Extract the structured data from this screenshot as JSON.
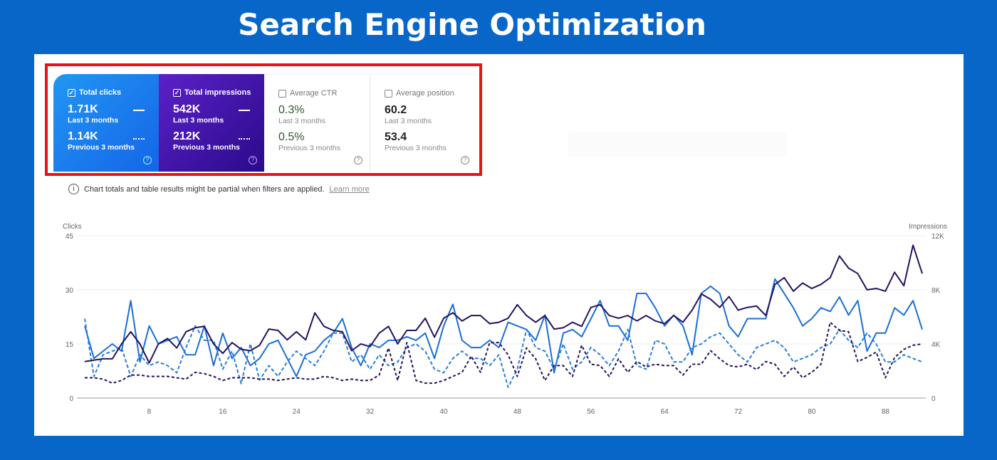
{
  "title": "Search Engine Optimization",
  "cards": [
    {
      "label": "Total clicks",
      "checked": true,
      "current": "1.71K",
      "current_label": "Last 3 months",
      "previous": "1.14K",
      "previous_label": "Previous 3 months"
    },
    {
      "label": "Total impressions",
      "checked": true,
      "current": "542K",
      "current_label": "Last 3 months",
      "previous": "212K",
      "previous_label": "Previous 3 months"
    },
    {
      "label": "Average CTR",
      "checked": false,
      "current": "0.3%",
      "current_label": "Last 3 months",
      "previous": "0.5%",
      "previous_label": "Previous 3 months"
    },
    {
      "label": "Average position",
      "checked": false,
      "current": "60.2",
      "current_label": "Last 3 months",
      "previous": "53.4",
      "previous_label": "Previous 3 months"
    }
  ],
  "info": {
    "text": "Chart totals and table results might be partial when filters are applied.",
    "link": "Learn more"
  },
  "colors": {
    "clicks": "#1a6fd6",
    "impressions": "#24135f",
    "background": "#0866c9",
    "highlight": "#e8121a"
  },
  "chart_data": {
    "type": "line",
    "x_ticks": [
      8,
      16,
      24,
      32,
      40,
      48,
      56,
      64,
      72,
      80,
      88
    ],
    "left_axis": {
      "label": "Clicks",
      "ticks": [
        "0",
        "15",
        "30",
        "45"
      ],
      "range": [
        0,
        45
      ]
    },
    "right_axis": {
      "label": "Impressions",
      "ticks": [
        "0",
        "4K",
        "8K",
        "12K"
      ],
      "range": [
        0,
        12
      ]
    },
    "series": [
      {
        "name": "Clicks (Last 3 months)",
        "axis": "left",
        "style": "solid",
        "values": [
          20,
          11,
          13,
          15,
          13,
          27,
          10,
          20,
          15,
          16,
          17,
          12,
          12,
          20,
          9,
          18,
          11,
          14,
          9,
          11,
          15,
          16,
          11,
          6,
          12,
          13,
          16,
          18,
          22,
          14,
          9,
          15,
          14,
          16,
          16,
          17,
          16,
          18,
          11,
          20,
          26,
          16,
          14,
          14,
          16,
          14,
          21,
          20,
          19,
          16,
          23,
          7,
          18,
          19,
          17,
          22,
          27,
          20,
          20,
          16,
          29,
          29,
          25,
          20,
          23,
          20,
          12,
          29,
          31,
          29,
          20,
          17,
          22,
          22,
          22,
          33,
          29,
          25,
          20,
          22,
          25,
          24,
          28,
          23,
          27,
          13,
          18,
          18,
          25,
          23,
          27,
          19
        ]
      },
      {
        "name": "Clicks (Previous 3 months)",
        "axis": "left",
        "style": "dashed",
        "values": [
          22,
          6,
          12,
          13,
          14,
          6,
          12,
          9,
          10,
          9,
          7,
          14,
          20,
          16,
          16,
          8,
          13,
          4,
          15,
          5,
          9,
          6,
          10,
          13,
          11,
          9,
          13,
          18,
          18,
          10,
          12,
          8,
          12,
          9,
          10,
          14,
          15,
          13,
          8,
          7,
          11,
          13,
          11,
          11,
          9,
          12,
          3,
          8,
          19,
          14,
          13,
          8,
          15,
          8,
          10,
          14,
          12,
          9,
          13,
          19,
          9,
          8,
          16,
          15,
          10,
          10,
          14,
          15,
          17,
          18,
          15,
          12,
          10,
          14,
          15,
          16,
          14,
          10,
          11,
          12,
          14,
          15,
          19,
          16,
          14,
          18,
          15,
          10,
          10,
          12,
          11,
          10
        ]
      },
      {
        "name": "Impressions (Last 3 months)",
        "axis": "right",
        "style": "solid",
        "values": [
          2.7,
          2.8,
          2.9,
          2.9,
          4.0,
          4.9,
          4.0,
          2.6,
          4.0,
          4.4,
          3.7,
          4.9,
          5.2,
          5.3,
          4.0,
          3.3,
          4.1,
          3.6,
          3.5,
          3.9,
          5.1,
          5.0,
          4.3,
          4.9,
          4.3,
          6.3,
          5.3,
          5.0,
          4.9,
          3.5,
          4.0,
          3.8,
          4.8,
          5.3,
          4.0,
          5.0,
          5.0,
          5.9,
          4.5,
          5.9,
          6.3,
          5.7,
          6.1,
          6.1,
          5.5,
          5.6,
          5.9,
          6.9,
          6.1,
          5.6,
          6.1,
          5.1,
          5.2,
          5.6,
          5.3,
          6.7,
          6.9,
          6.1,
          5.9,
          6.1,
          5.7,
          6.1,
          5.7,
          5.5,
          6.1,
          5.6,
          6.5,
          7.7,
          7.3,
          6.7,
          7.5,
          6.5,
          6.7,
          6.8,
          6.1,
          8.4,
          8.9,
          7.9,
          8.5,
          8.1,
          8.4,
          8.9,
          10.5,
          9.6,
          9.2,
          8.0,
          8.1,
          7.9,
          9.3,
          8.3,
          11.3,
          9.2
        ]
      },
      {
        "name": "Impressions (Previous 3 months)",
        "axis": "right",
        "style": "dashed",
        "values": [
          1.5,
          1.5,
          1.4,
          1.1,
          1.3,
          1.7,
          1.7,
          1.6,
          1.6,
          1.6,
          1.5,
          1.4,
          1.9,
          1.8,
          1.6,
          1.3,
          1.5,
          1.5,
          1.5,
          1.4,
          1.4,
          1.3,
          1.4,
          1.5,
          1.4,
          1.4,
          1.6,
          1.5,
          1.3,
          1.4,
          1.3,
          1.3,
          1.7,
          3.7,
          1.3,
          4.1,
          1.3,
          1.1,
          1.1,
          1.3,
          1.6,
          1.9,
          3.1,
          1.9,
          4.1,
          4.1,
          3.2,
          1.6,
          3.7,
          2.9,
          1.3,
          2.4,
          2.4,
          1.6,
          3.9,
          2.5,
          2.4,
          1.6,
          2.9,
          1.9,
          2.7,
          2.3,
          2.5,
          2.4,
          2.4,
          1.7,
          2.5,
          2.5,
          3.5,
          2.9,
          2.4,
          2.3,
          2.5,
          2.1,
          2.7,
          2.5,
          1.6,
          2.3,
          1.5,
          1.9,
          2.5,
          5.6,
          5.0,
          4.9,
          2.7,
          3.0,
          3.4,
          1.5,
          3.0,
          3.6,
          3.9,
          4.0
        ]
      }
    ]
  }
}
